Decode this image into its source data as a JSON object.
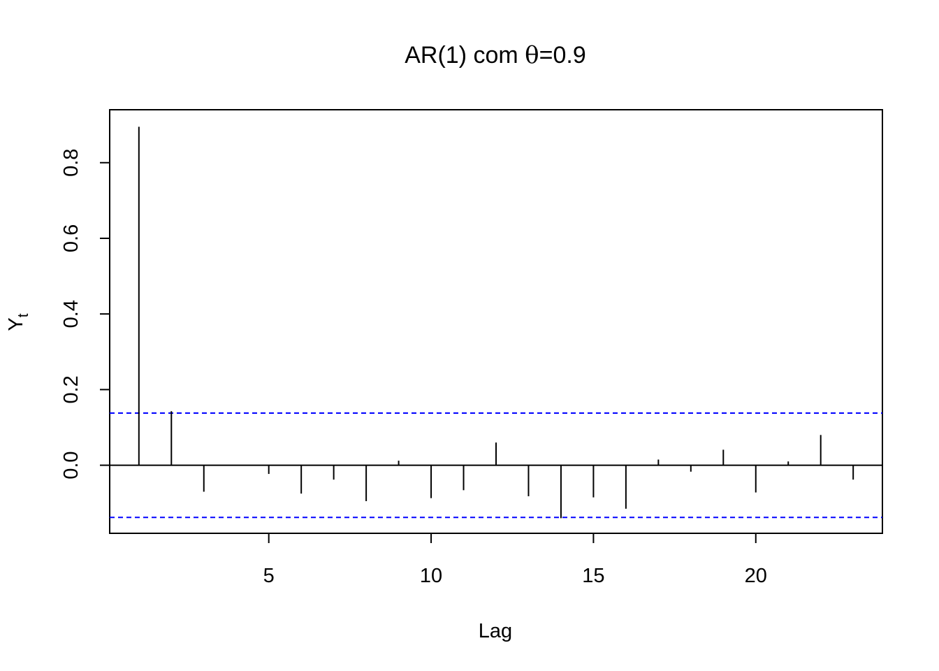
{
  "chart_data": {
    "type": "bar",
    "title_main": "AR(1) com ",
    "title_symbol": "θ",
    "title_rest": "=0.9",
    "xlabel": "Lag",
    "ylabel_main": "Y",
    "ylabel_sub": "t",
    "xlim": [
      0.1,
      23.9
    ],
    "ylim": [
      -0.18,
      0.94
    ],
    "x_ticks": [
      5,
      10,
      15,
      20
    ],
    "x_tick_labels": [
      "5",
      "10",
      "15",
      "20"
    ],
    "y_ticks": [
      0.0,
      0.2,
      0.4,
      0.6,
      0.8
    ],
    "y_tick_labels": [
      "0.0",
      "0.2",
      "0.4",
      "0.6",
      "0.8"
    ],
    "lags": [
      1,
      2,
      3,
      4,
      5,
      6,
      7,
      8,
      9,
      10,
      11,
      12,
      13,
      14,
      15,
      16,
      17,
      18,
      19,
      20,
      21,
      22,
      23
    ],
    "acf": [
      0.895,
      0.143,
      -0.07,
      -0.001,
      -0.023,
      -0.075,
      -0.038,
      -0.095,
      0.012,
      -0.087,
      -0.066,
      0.06,
      -0.082,
      -0.14,
      -0.085,
      -0.115,
      0.015,
      -0.017,
      0.041,
      -0.072,
      0.01,
      0.08,
      -0.038
    ],
    "confidence_bound": 0.138,
    "colors": {
      "bars": "#000000",
      "zero_line": "#000000",
      "confidence": "#0000ff"
    }
  }
}
